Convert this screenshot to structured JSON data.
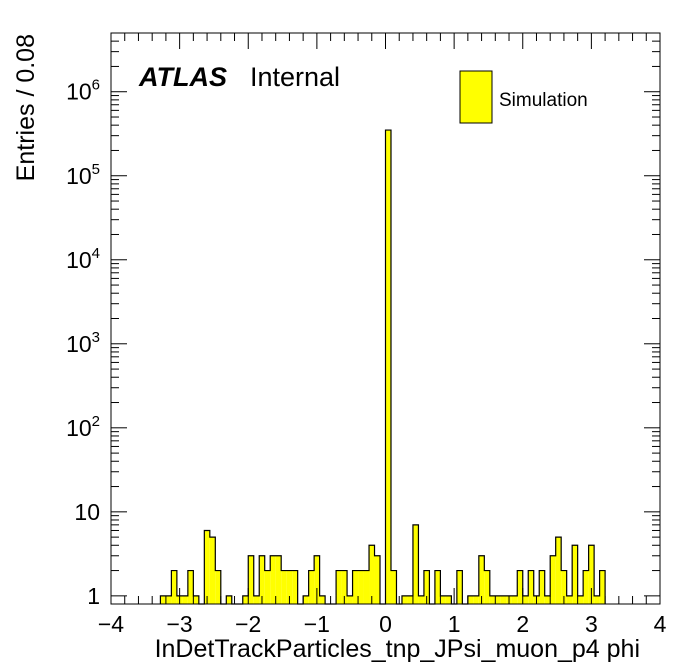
{
  "labels": {
    "atlas": "ATLAS",
    "internal": "Internal",
    "legend_entry": "Simulation"
  },
  "colors": {
    "fill": "#ffff00",
    "line": "#000000",
    "background": "#ffffff"
  },
  "chart_data": {
    "type": "bar",
    "histogram": true,
    "xlabel": "InDetTrackParticles_tnp_JPsi_muon_p4 phi",
    "ylabel": "Entries / 0.08",
    "xlim": [
      -4,
      4
    ],
    "ylim": [
      0.8,
      5000000
    ],
    "log_y": true,
    "bin_width": 0.08,
    "grid": false,
    "legend": {
      "position": "top-right",
      "entries": [
        "Simulation"
      ]
    },
    "x_ticks": [
      "−4",
      "−3",
      "−2",
      "−1",
      "0",
      "1",
      "2",
      "3",
      "4"
    ],
    "y_ticks": [
      "1",
      "10",
      "10^2",
      "10^3",
      "10^4",
      "10^5",
      "10^6"
    ],
    "series": [
      {
        "name": "Simulation",
        "bins": [
          {
            "x": -3.24,
            "y": 1
          },
          {
            "x": -3.16,
            "y": 1
          },
          {
            "x": -3.08,
            "y": 2
          },
          {
            "x": -3.0,
            "y": 1
          },
          {
            "x": -2.92,
            "y": 1
          },
          {
            "x": -2.84,
            "y": 2
          },
          {
            "x": -2.76,
            "y": 1
          },
          {
            "x": -2.6,
            "y": 6
          },
          {
            "x": -2.52,
            "y": 5
          },
          {
            "x": -2.44,
            "y": 2
          },
          {
            "x": -2.28,
            "y": 1
          },
          {
            "x": -2.04,
            "y": 1
          },
          {
            "x": -1.96,
            "y": 3
          },
          {
            "x": -1.88,
            "y": 1
          },
          {
            "x": -1.8,
            "y": 3
          },
          {
            "x": -1.72,
            "y": 2
          },
          {
            "x": -1.64,
            "y": 3
          },
          {
            "x": -1.56,
            "y": 3
          },
          {
            "x": -1.48,
            "y": 2
          },
          {
            "x": -1.4,
            "y": 2
          },
          {
            "x": -1.32,
            "y": 2
          },
          {
            "x": -1.16,
            "y": 1
          },
          {
            "x": -1.08,
            "y": 2
          },
          {
            "x": -1.0,
            "y": 3
          },
          {
            "x": -0.92,
            "y": 1
          },
          {
            "x": -0.68,
            "y": 2
          },
          {
            "x": -0.6,
            "y": 2
          },
          {
            "x": -0.52,
            "y": 1
          },
          {
            "x": -0.44,
            "y": 2
          },
          {
            "x": -0.36,
            "y": 2
          },
          {
            "x": -0.28,
            "y": 2
          },
          {
            "x": -0.2,
            "y": 4
          },
          {
            "x": -0.12,
            "y": 3
          },
          {
            "x": 0.04,
            "y": 350000
          },
          {
            "x": 0.12,
            "y": 2
          },
          {
            "x": 0.28,
            "y": 1
          },
          {
            "x": 0.36,
            "y": 1
          },
          {
            "x": 0.44,
            "y": 7
          },
          {
            "x": 0.52,
            "y": 1
          },
          {
            "x": 0.6,
            "y": 2
          },
          {
            "x": 0.76,
            "y": 2
          },
          {
            "x": 0.84,
            "y": 1
          },
          {
            "x": 0.92,
            "y": 1
          },
          {
            "x": 1.08,
            "y": 2
          },
          {
            "x": 1.24,
            "y": 1
          },
          {
            "x": 1.32,
            "y": 1
          },
          {
            "x": 1.4,
            "y": 3
          },
          {
            "x": 1.48,
            "y": 2
          },
          {
            "x": 1.56,
            "y": 1
          },
          {
            "x": 1.64,
            "y": 1
          },
          {
            "x": 1.72,
            "y": 1
          },
          {
            "x": 1.8,
            "y": 1
          },
          {
            "x": 1.88,
            "y": 1
          },
          {
            "x": 1.96,
            "y": 2
          },
          {
            "x": 2.04,
            "y": 1
          },
          {
            "x": 2.12,
            "y": 2
          },
          {
            "x": 2.2,
            "y": 1
          },
          {
            "x": 2.28,
            "y": 2
          },
          {
            "x": 2.36,
            "y": 1
          },
          {
            "x": 2.44,
            "y": 3
          },
          {
            "x": 2.52,
            "y": 5
          },
          {
            "x": 2.6,
            "y": 2
          },
          {
            "x": 2.68,
            "y": 1
          },
          {
            "x": 2.76,
            "y": 4
          },
          {
            "x": 2.84,
            "y": 1
          },
          {
            "x": 2.92,
            "y": 2
          },
          {
            "x": 3.0,
            "y": 4
          },
          {
            "x": 3.08,
            "y": 1
          },
          {
            "x": 3.16,
            "y": 2
          }
        ]
      }
    ]
  }
}
